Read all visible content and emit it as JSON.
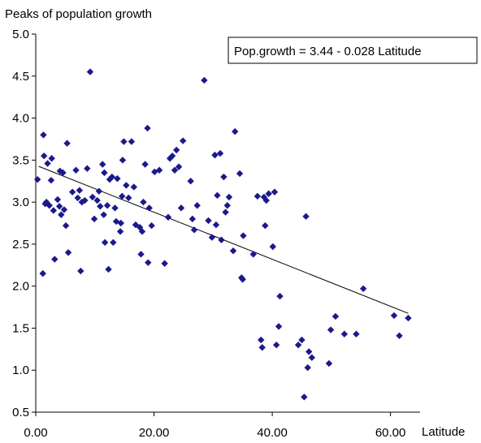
{
  "chart_data": {
    "type": "scatter",
    "title": "",
    "xlabel": "Latitude",
    "ylabel": "Peaks of population growth",
    "xlim": [
      0,
      65
    ],
    "ylim": [
      0.5,
      5.0
    ],
    "x_ticks": [
      "0.00",
      "20.00",
      "40.00",
      "60.00"
    ],
    "x_tick_values": [
      0,
      20,
      40,
      60
    ],
    "y_ticks": [
      "0.5",
      "1.0",
      "1.5",
      "2.0",
      "2.5",
      "3.0",
      "3.5",
      "4.0",
      "4.5",
      "5.0"
    ],
    "y_tick_values": [
      0.5,
      1.0,
      1.5,
      2.0,
      2.5,
      3.0,
      3.5,
      4.0,
      4.5,
      5.0
    ],
    "grid": false,
    "marker_color": "#1a1a8c",
    "line_color": "#000000",
    "equation_label": "Pop.growth = 3.44 - 0.028 Latitude",
    "trendline": {
      "intercept": 3.44,
      "slope": -0.028,
      "x_range": [
        0.5,
        63
      ]
    },
    "points": [
      [
        0.3,
        3.27
      ],
      [
        1.2,
        2.15
      ],
      [
        1.3,
        3.8
      ],
      [
        1.4,
        3.55
      ],
      [
        1.6,
        2.98
      ],
      [
        1.8,
        3.0
      ],
      [
        2.0,
        3.46
      ],
      [
        2.3,
        2.96
      ],
      [
        2.6,
        3.26
      ],
      [
        2.7,
        3.52
      ],
      [
        3.0,
        2.9
      ],
      [
        3.2,
        2.32
      ],
      [
        3.7,
        3.03
      ],
      [
        4.0,
        2.95
      ],
      [
        4.1,
        3.37
      ],
      [
        4.3,
        2.85
      ],
      [
        4.6,
        3.35
      ],
      [
        4.8,
        2.91
      ],
      [
        5.1,
        2.72
      ],
      [
        5.3,
        3.7
      ],
      [
        5.5,
        2.4
      ],
      [
        6.2,
        3.12
      ],
      [
        6.8,
        3.38
      ],
      [
        7.1,
        3.05
      ],
      [
        7.4,
        3.14
      ],
      [
        7.6,
        2.18
      ],
      [
        7.8,
        3.0
      ],
      [
        8.3,
        3.02
      ],
      [
        8.7,
        3.4
      ],
      [
        9.2,
        4.55
      ],
      [
        9.6,
        3.06
      ],
      [
        9.9,
        2.8
      ],
      [
        10.4,
        3.02
      ],
      [
        10.7,
        3.13
      ],
      [
        10.9,
        2.95
      ],
      [
        11.3,
        3.45
      ],
      [
        11.5,
        2.85
      ],
      [
        11.6,
        3.35
      ],
      [
        11.7,
        2.52
      ],
      [
        12.1,
        2.96
      ],
      [
        12.3,
        2.2
      ],
      [
        12.5,
        3.27
      ],
      [
        12.9,
        3.3
      ],
      [
        13.1,
        2.52
      ],
      [
        13.4,
        2.93
      ],
      [
        13.6,
        2.77
      ],
      [
        13.8,
        3.28
      ],
      [
        14.3,
        2.65
      ],
      [
        14.4,
        2.75
      ],
      [
        14.6,
        3.07
      ],
      [
        14.7,
        3.5
      ],
      [
        14.9,
        3.72
      ],
      [
        15.3,
        3.2
      ],
      [
        15.7,
        3.05
      ],
      [
        16.2,
        3.72
      ],
      [
        16.6,
        3.18
      ],
      [
        16.9,
        2.73
      ],
      [
        17.6,
        2.7
      ],
      [
        17.8,
        2.38
      ],
      [
        18.0,
        2.65
      ],
      [
        18.2,
        3.0
      ],
      [
        18.5,
        3.45
      ],
      [
        18.9,
        3.88
      ],
      [
        19.0,
        2.28
      ],
      [
        19.2,
        2.93
      ],
      [
        19.6,
        2.72
      ],
      [
        20.1,
        3.36
      ],
      [
        20.9,
        3.38
      ],
      [
        21.8,
        2.27
      ],
      [
        22.4,
        2.82
      ],
      [
        22.7,
        3.52
      ],
      [
        23.1,
        3.55
      ],
      [
        23.5,
        3.38
      ],
      [
        23.8,
        3.62
      ],
      [
        24.2,
        3.42
      ],
      [
        24.6,
        2.93
      ],
      [
        24.9,
        3.73
      ],
      [
        26.2,
        3.25
      ],
      [
        26.5,
        2.8
      ],
      [
        26.8,
        2.67
      ],
      [
        27.3,
        2.96
      ],
      [
        28.5,
        4.45
      ],
      [
        29.2,
        2.78
      ],
      [
        29.8,
        2.58
      ],
      [
        30.3,
        3.56
      ],
      [
        30.5,
        2.73
      ],
      [
        30.7,
        3.08
      ],
      [
        31.2,
        3.58
      ],
      [
        31.4,
        2.55
      ],
      [
        31.8,
        3.3
      ],
      [
        32.1,
        2.88
      ],
      [
        32.4,
        2.96
      ],
      [
        32.7,
        3.06
      ],
      [
        33.4,
        2.42
      ],
      [
        33.7,
        3.84
      ],
      [
        34.5,
        3.34
      ],
      [
        34.8,
        2.1
      ],
      [
        35.0,
        2.08
      ],
      [
        35.1,
        2.6
      ],
      [
        36.8,
        2.38
      ],
      [
        37.5,
        3.07
      ],
      [
        38.1,
        1.36
      ],
      [
        38.3,
        1.27
      ],
      [
        38.6,
        3.06
      ],
      [
        38.8,
        2.72
      ],
      [
        39.0,
        3.02
      ],
      [
        39.4,
        3.1
      ],
      [
        40.1,
        2.47
      ],
      [
        40.4,
        3.12
      ],
      [
        40.7,
        1.3
      ],
      [
        41.1,
        1.52
      ],
      [
        41.3,
        1.88
      ],
      [
        44.4,
        1.3
      ],
      [
        45.0,
        1.36
      ],
      [
        45.4,
        0.68
      ],
      [
        45.7,
        2.83
      ],
      [
        46.0,
        1.03
      ],
      [
        46.2,
        1.22
      ],
      [
        46.7,
        1.15
      ],
      [
        49.6,
        1.08
      ],
      [
        49.9,
        1.48
      ],
      [
        50.7,
        1.64
      ],
      [
        52.2,
        1.43
      ],
      [
        54.2,
        1.43
      ],
      [
        55.4,
        1.97
      ],
      [
        60.6,
        1.65
      ],
      [
        61.5,
        1.41
      ],
      [
        63.0,
        1.62
      ]
    ]
  }
}
